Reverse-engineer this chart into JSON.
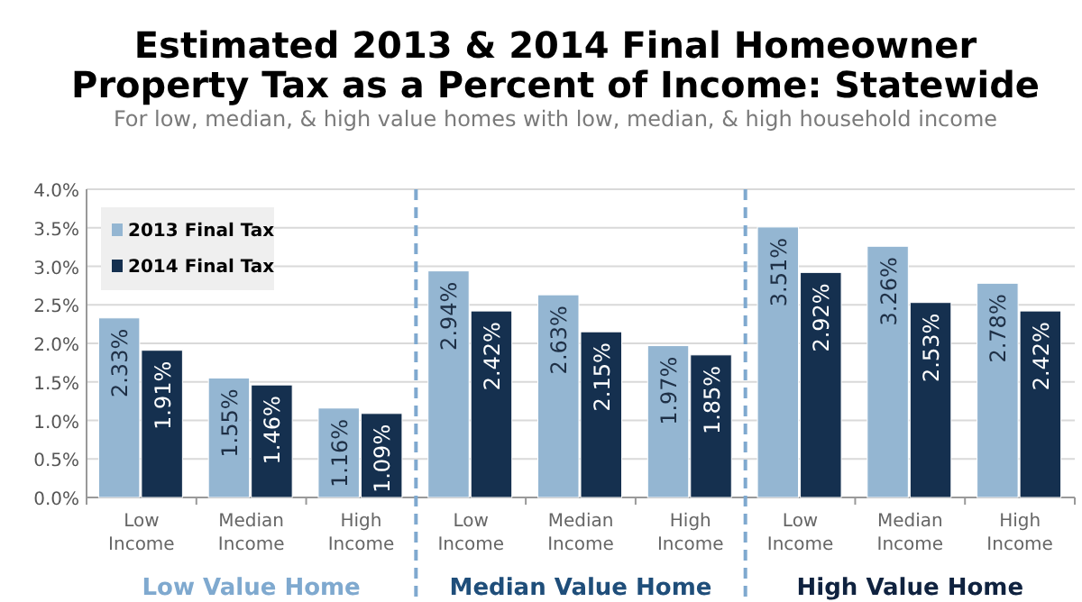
{
  "chart_data": {
    "type": "bar",
    "title": "Estimated 2013 & 2014 Final Homeowner Property Tax as a Percent of Income: Statewide",
    "subtitle": "For low, median, & high value homes with low, median, & high household income",
    "categories": [
      "Low Income",
      "Median Income",
      "High Income",
      "Low Income",
      "Median Income",
      "High Income",
      "Low Income",
      "Median Income",
      "High Income"
    ],
    "series": [
      {
        "name": "2013 Final Tax",
        "color": "#94b6d2",
        "values": [
          2.33,
          1.55,
          1.16,
          2.94,
          2.63,
          1.97,
          3.51,
          3.26,
          2.78
        ],
        "value_labels": [
          "2.33%",
          "1.55%",
          "1.16%",
          "2.94%",
          "2.63%",
          "1.97%",
          "3.51%",
          "3.26%",
          "2.78%"
        ]
      },
      {
        "name": "2014 Final Tax",
        "color": "#15304f",
        "values": [
          1.91,
          1.46,
          1.09,
          2.42,
          2.15,
          1.85,
          2.92,
          2.53,
          2.42
        ],
        "value_labels": [
          "1.91%",
          "1.46%",
          "1.09%",
          "2.42%",
          "2.15%",
          "1.85%",
          "2.92%",
          "2.53%",
          "2.42%"
        ]
      }
    ],
    "annotations": [
      "Low Value Home",
      "Median Value Home",
      "High Value Home"
    ],
    "ylim": [
      0,
      4
    ],
    "yticks": [
      {
        "value": 0,
        "label": "0.0%"
      },
      {
        "value": 0.5,
        "label": "0.5%"
      },
      {
        "value": 1,
        "label": "1.0%"
      },
      {
        "value": 1.5,
        "label": "1.5%"
      },
      {
        "value": 2,
        "label": "2.0%"
      },
      {
        "value": 2.5,
        "label": "2.5%"
      },
      {
        "value": 3,
        "label": "3.0%"
      },
      {
        "value": 3.5,
        "label": "3.5%"
      },
      {
        "value": 4,
        "label": "4.0%"
      }
    ],
    "grid": "y",
    "legend": "top left"
  }
}
